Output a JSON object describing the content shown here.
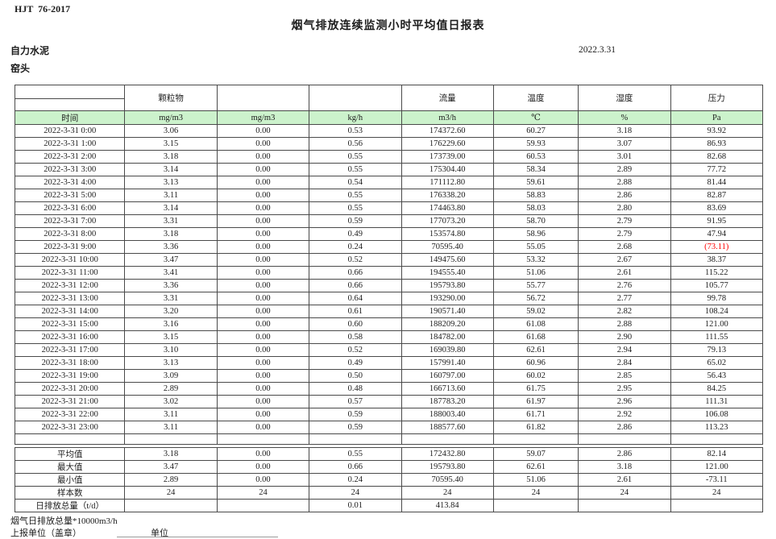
{
  "page": {
    "standard_code": "HJT  76-2017",
    "title": "烟气排放连续监测小时平均值日报表",
    "company": "自力水泥",
    "station": "窑头",
    "date": "2022.3.31"
  },
  "table": {
    "group_headers": [
      "",
      "颗粒物",
      "",
      "",
      "流量",
      "温度",
      "湿度",
      "压力"
    ],
    "unit_row": [
      "时间",
      "mg/m3",
      "mg/m3",
      "kg/h",
      "m3/h",
      "℃",
      "%",
      "Pa"
    ],
    "rows": [
      [
        "2022-3-31 0:00",
        "3.06",
        "0.00",
        "0.53",
        "174372.60",
        "60.27",
        "3.18",
        "93.92"
      ],
      [
        "2022-3-31 1:00",
        "3.15",
        "0.00",
        "0.56",
        "176229.60",
        "59.93",
        "3.07",
        "86.93"
      ],
      [
        "2022-3-31 2:00",
        "3.18",
        "0.00",
        "0.55",
        "173739.00",
        "60.53",
        "3.01",
        "82.68"
      ],
      [
        "2022-3-31 3:00",
        "3.14",
        "0.00",
        "0.55",
        "175304.40",
        "58.34",
        "2.89",
        "77.72"
      ],
      [
        "2022-3-31 4:00",
        "3.13",
        "0.00",
        "0.54",
        "171112.80",
        "59.61",
        "2.88",
        "81.44"
      ],
      [
        "2022-3-31 5:00",
        "3.11",
        "0.00",
        "0.55",
        "176338.20",
        "58.83",
        "2.86",
        "82.87"
      ],
      [
        "2022-3-31 6:00",
        "3.14",
        "0.00",
        "0.55",
        "174463.80",
        "58.03",
        "2.80",
        "83.69"
      ],
      [
        "2022-3-31 7:00",
        "3.31",
        "0.00",
        "0.59",
        "177073.20",
        "58.70",
        "2.79",
        "91.95"
      ],
      [
        "2022-3-31 8:00",
        "3.18",
        "0.00",
        "0.49",
        "153574.80",
        "58.96",
        "2.79",
        "47.94"
      ],
      [
        "2022-3-31 9:00",
        "3.36",
        "0.00",
        "0.24",
        "70595.40",
        "55.05",
        "2.68",
        "(73.11)"
      ],
      [
        "2022-3-31 10:00",
        "3.47",
        "0.00",
        "0.52",
        "149475.60",
        "53.32",
        "2.67",
        "38.37"
      ],
      [
        "2022-3-31 11:00",
        "3.41",
        "0.00",
        "0.66",
        "194555.40",
        "51.06",
        "2.61",
        "115.22"
      ],
      [
        "2022-3-31 12:00",
        "3.36",
        "0.00",
        "0.66",
        "195793.80",
        "55.77",
        "2.76",
        "105.77"
      ],
      [
        "2022-3-31 13:00",
        "3.31",
        "0.00",
        "0.64",
        "193290.00",
        "56.72",
        "2.77",
        "99.78"
      ],
      [
        "2022-3-31 14:00",
        "3.20",
        "0.00",
        "0.61",
        "190571.40",
        "59.02",
        "2.82",
        "108.24"
      ],
      [
        "2022-3-31 15:00",
        "3.16",
        "0.00",
        "0.60",
        "188209.20",
        "61.08",
        "2.88",
        "121.00"
      ],
      [
        "2022-3-31 16:00",
        "3.15",
        "0.00",
        "0.58",
        "184782.00",
        "61.68",
        "2.90",
        "111.55"
      ],
      [
        "2022-3-31 17:00",
        "3.10",
        "0.00",
        "0.52",
        "169039.80",
        "62.61",
        "2.94",
        "79.13"
      ],
      [
        "2022-3-31 18:00",
        "3.13",
        "0.00",
        "0.49",
        "157991.40",
        "60.96",
        "2.84",
        "65.02"
      ],
      [
        "2022-3-31 19:00",
        "3.09",
        "0.00",
        "0.50",
        "160797.00",
        "60.02",
        "2.85",
        "56.43"
      ],
      [
        "2022-3-31 20:00",
        "2.89",
        "0.00",
        "0.48",
        "166713.60",
        "61.75",
        "2.95",
        "84.25"
      ],
      [
        "2022-3-31 21:00",
        "3.02",
        "0.00",
        "0.57",
        "187783.20",
        "61.97",
        "2.96",
        "111.31"
      ],
      [
        "2022-3-31 22:00",
        "3.11",
        "0.00",
        "0.59",
        "188003.40",
        "61.71",
        "2.92",
        "106.08"
      ],
      [
        "2022-3-31 23:00",
        "3.11",
        "0.00",
        "0.59",
        "188577.60",
        "61.82",
        "2.86",
        "113.23"
      ]
    ],
    "summary_rows": [
      [
        "平均值",
        "3.18",
        "0.00",
        "0.55",
        "172432.80",
        "59.07",
        "2.86",
        "82.14"
      ],
      [
        "最大值",
        "3.47",
        "0.00",
        "0.66",
        "195793.80",
        "62.61",
        "3.18",
        "121.00"
      ],
      [
        "最小值",
        "2.89",
        "0.00",
        "0.24",
        "70595.40",
        "51.06",
        "2.61",
        "-73.11"
      ],
      [
        "样本数",
        "24",
        "24",
        "24",
        "24",
        "24",
        "24",
        "24"
      ],
      [
        "日排放总量（t/d）",
        "",
        "",
        "0.01",
        "413.84",
        "",
        "",
        ""
      ]
    ],
    "colors": {
      "unit_row_bg": "#ccf2cc",
      "negative_red": "#ff0000",
      "border": "#4a4a4a"
    }
  },
  "footer": {
    "note": "烟气日排放总量*10000m3/h",
    "report_unit_label": "上报单位（盖章）",
    "unit_label": "单位"
  }
}
